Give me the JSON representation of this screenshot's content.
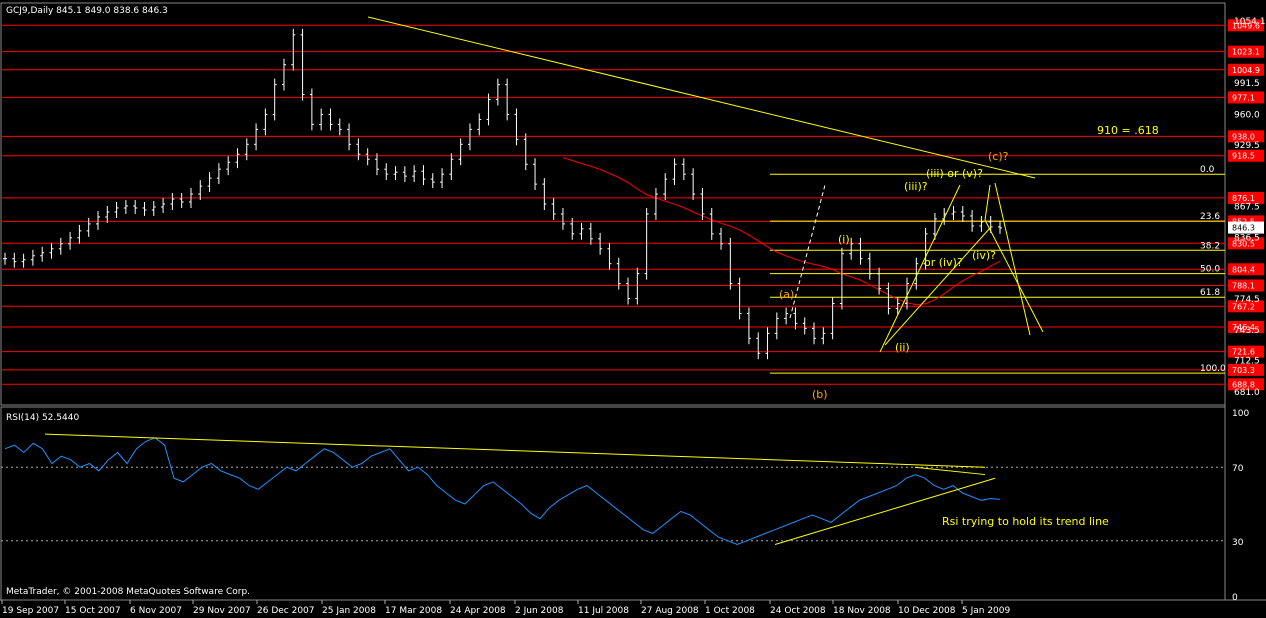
{
  "window": {
    "symbol_header": "GCJ9,Daily  845.1 849.0 838.6 846.3",
    "rsi_header": "RSI(14) 52.5440",
    "copyright": "MetaTrader, © 2001-2008 MetaQuotes Software Corp."
  },
  "chart_data": [
    {
      "type": "ohlc",
      "title": "GCJ9,Daily",
      "ohlc_last": {
        "open": 845.1,
        "high": 849.0,
        "low": 838.6,
        "close": 846.3
      },
      "ylim": [
        670,
        1070
      ],
      "y_tick_labels": [
        1054.1,
        991.5,
        960.0,
        929.5,
        867.5,
        836.5,
        774.5,
        743.5,
        712.5,
        681.0
      ],
      "x_tick_labels": [
        "19 Sep 2007",
        "15 Oct 2007",
        "6 Nov 2007",
        "29 Nov 2007",
        "26 Dec 2007",
        "25 Jan 2008",
        "17 Mar 2008",
        "24 Apr 2008",
        "2 Jun 2008",
        "11 Jul 2008",
        "27 Aug 2008",
        "1 Oct 2008",
        "24 Oct 2008",
        "18 Nov 2008",
        "10 Dec 2008",
        "5 Jan 2009"
      ],
      "horizontal_levels": [
        1049.6,
        1023.1,
        1004.9,
        977.1,
        938.0,
        918.5,
        876.1,
        852.5,
        830.5,
        804.4,
        788.1,
        767.2,
        746.4,
        721.6,
        703.3,
        688.8
      ],
      "current_price": 846.3,
      "fibonacci": {
        "levels": [
          {
            "label": "0.0",
            "value": 899.9
          },
          {
            "label": "23.6",
            "value": 852.8
          },
          {
            "label": "38.2",
            "value": 823.5
          },
          {
            "label": "50.0",
            "value": 800.0
          },
          {
            "label": "61.8",
            "value": 776.3
          },
          {
            "label": "100.0",
            "value": 700.0
          }
        ]
      },
      "annotations": [
        "910 = .618",
        "(c)?",
        "(iii) or (v)?",
        "(iii)?",
        "(i)",
        "(ii)",
        "or (iv)?",
        "(iv)?",
        "(a)",
        "(b)"
      ],
      "close_series": [
        815,
        812,
        814,
        818,
        821,
        825,
        830,
        836,
        843,
        850,
        857,
        862,
        866,
        868,
        866,
        864,
        867,
        870,
        875,
        872,
        880,
        888,
        896,
        905,
        912,
        920,
        930,
        945,
        960,
        990,
        1010,
        1040,
        980,
        950,
        960,
        950,
        945,
        930,
        920,
        915,
        905,
        900,
        902,
        898,
        903,
        895,
        892,
        900,
        915,
        930,
        945,
        955,
        975,
        990,
        960,
        935,
        910,
        890,
        870,
        860,
        850,
        840,
        845,
        835,
        825,
        810,
        790,
        775,
        800,
        860,
        880,
        895,
        910,
        900,
        880,
        860,
        840,
        830,
        790,
        760,
        735,
        720,
        740,
        755,
        760,
        750,
        745,
        735,
        740,
        770,
        820,
        830,
        815,
        800,
        785,
        765,
        770,
        790,
        810,
        840,
        855,
        860,
        862,
        858,
        848,
        852,
        847,
        846
      ]
    },
    {
      "type": "line",
      "title": "RSI(14) 52.5440",
      "ylim": [
        0,
        100
      ],
      "y_tick_labels": [
        100,
        70,
        30,
        0
      ],
      "levels": [
        70,
        30
      ],
      "last_value": 52.544,
      "series_values": [
        80,
        82,
        78,
        83,
        80,
        72,
        76,
        74,
        70,
        72,
        68,
        74,
        78,
        72,
        80,
        84,
        86,
        82,
        64,
        62,
        66,
        70,
        72,
        68,
        66,
        64,
        60,
        58,
        62,
        66,
        70,
        68,
        72,
        76,
        80,
        78,
        74,
        70,
        72,
        76,
        78,
        80,
        74,
        68,
        70,
        66,
        60,
        56,
        52,
        50,
        55,
        60,
        62,
        58,
        54,
        50,
        45,
        42,
        48,
        52,
        55,
        58,
        60,
        56,
        52,
        48,
        44,
        40,
        36,
        34,
        38,
        42,
        46,
        44,
        40,
        36,
        32,
        30,
        28,
        30,
        32,
        34,
        36,
        38,
        40,
        42,
        44,
        42,
        40,
        44,
        48,
        52,
        54,
        56,
        58,
        60,
        64,
        66,
        64,
        60,
        58,
        60,
        56,
        54,
        52,
        53,
        52.5
      ]
    }
  ],
  "text_annotations": {
    "rsi_note": "Rsi trying to hold its trend line"
  },
  "colors": {
    "background": "#000000",
    "price_bars": "#ffffff",
    "level_lines": "#ff0000",
    "level_tag_bg": "#ff0000",
    "fib_lines": "#ffff00",
    "ma_line": "#ff0000",
    "rsi_line": "#1e90ff",
    "trend_lines": "#ffff00",
    "wave_labels": "#ffa500"
  }
}
